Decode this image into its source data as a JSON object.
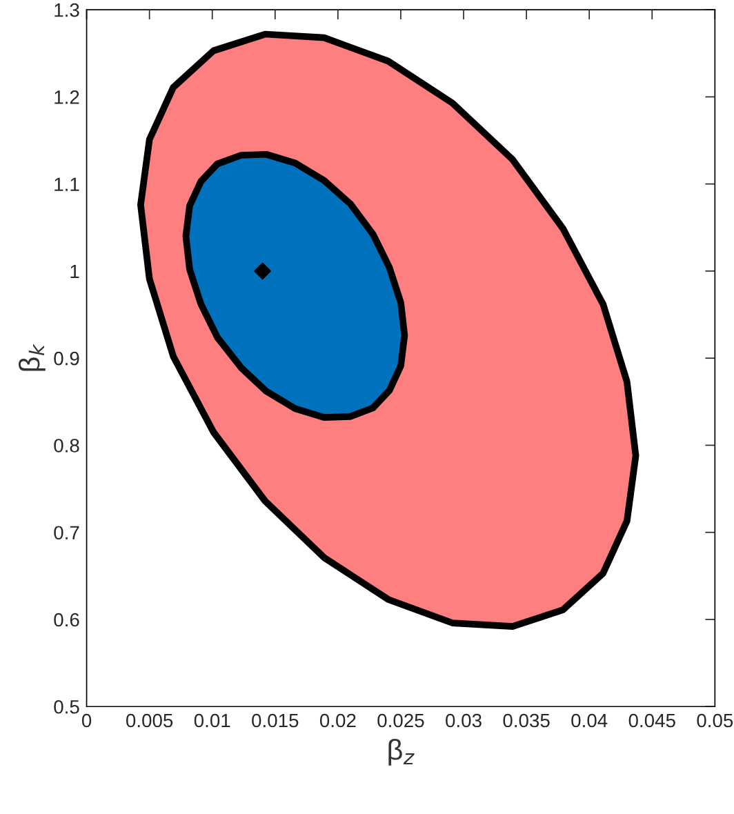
{
  "chart_data": {
    "type": "area",
    "xlabel": "β$_{z}$",
    "ylabel": "β$_{k}$",
    "xlim": [
      0,
      0.05
    ],
    "ylim": [
      0.5,
      1.3
    ],
    "xticks": [
      0,
      0.005,
      0.01,
      0.015,
      0.02,
      0.025,
      0.03,
      0.035,
      0.04,
      0.045,
      0.05
    ],
    "yticks": [
      0.5,
      0.6,
      0.7,
      0.8,
      0.9,
      1,
      1.1,
      1.2,
      1.3
    ],
    "grid": false,
    "series": [
      {
        "color": "#fd7f7f",
        "x": [
          0.0437,
          0.043,
          0.0411,
          0.0379,
          0.0339,
          0.0291,
          0.024,
          0.0189,
          0.0142,
          0.0101,
          0.0069,
          0.005,
          0.0043,
          0.005,
          0.0069,
          0.0101,
          0.0142,
          0.0189,
          0.024,
          0.0291,
          0.0339,
          0.0379,
          0.0411,
          0.043
        ],
        "values": [
          0.788,
          0.713,
          0.653,
          0.611,
          0.592,
          0.596,
          0.623,
          0.671,
          0.736,
          0.815,
          0.902,
          0.991,
          1.076,
          1.151,
          1.211,
          1.253,
          1.272,
          1.268,
          1.241,
          1.193,
          1.128,
          1.049,
          0.962,
          0.873
        ]
      },
      {
        "color": "#0072bd",
        "x": [
          0.0253,
          0.025,
          0.0241,
          0.0228,
          0.021,
          0.0189,
          0.0166,
          0.0143,
          0.0123,
          0.0104,
          0.0091,
          0.0082,
          0.0079,
          0.0082,
          0.0091,
          0.0104,
          0.0123,
          0.0143,
          0.0166,
          0.0189,
          0.021,
          0.0228,
          0.0241,
          0.025
        ],
        "values": [
          0.926,
          0.891,
          0.863,
          0.843,
          0.833,
          0.832,
          0.842,
          0.862,
          0.889,
          0.924,
          0.962,
          1.002,
          1.04,
          1.075,
          1.103,
          1.123,
          1.133,
          1.134,
          1.124,
          1.104,
          1.077,
          1.042,
          1.004,
          0.964
        ]
      },
      {
        "type": "scatter",
        "color": "#000000",
        "marker": "diamond",
        "x": [
          0.014
        ],
        "values": [
          1.0
        ]
      }
    ]
  }
}
